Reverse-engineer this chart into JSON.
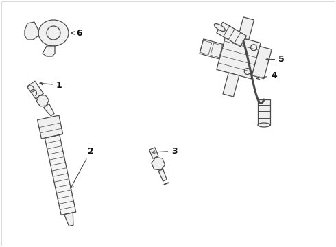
{
  "bg_color": "#ffffff",
  "line_color": "#4a4a4a",
  "label_color": "#111111",
  "figsize": [
    4.9,
    3.6
  ],
  "dpi": 100,
  "lw": 0.9,
  "gray_fill": "#e8e8e8",
  "mid_gray": "#aaaaaa"
}
